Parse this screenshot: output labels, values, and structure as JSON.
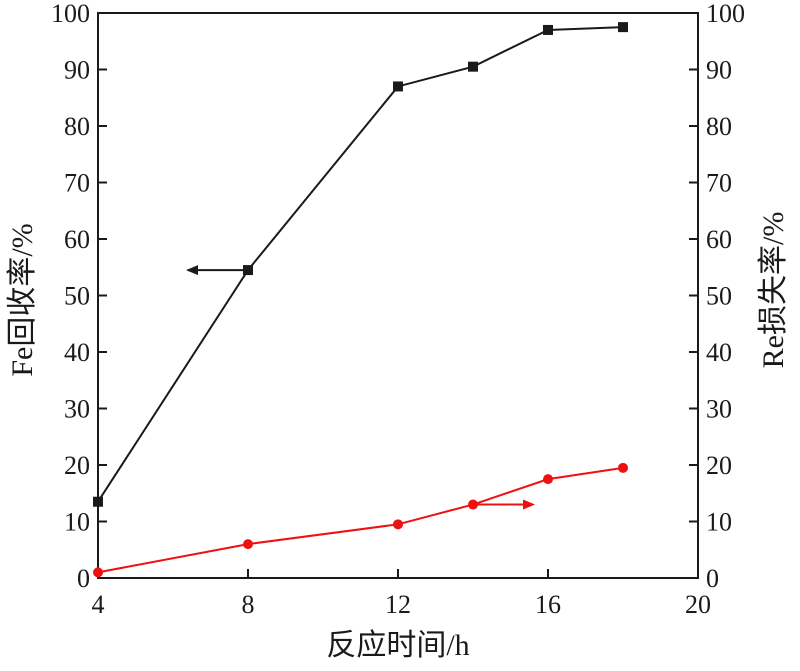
{
  "chart_data": {
    "type": "line",
    "xlabel": "反应时间/h",
    "ylabel_left": "Fe回收率/%",
    "ylabel_right": "Re损失率/%",
    "xlim": [
      4,
      20
    ],
    "xticks": [
      4,
      8,
      12,
      16,
      20
    ],
    "ylim_left": [
      0,
      100
    ],
    "ylim_right": [
      0,
      100
    ],
    "yticks": [
      0,
      10,
      20,
      30,
      40,
      50,
      60,
      70,
      80,
      90,
      100
    ],
    "grid": false,
    "series": [
      {
        "axis": "left",
        "marker": "square",
        "color": "#1a1a1a",
        "x": [
          4,
          8,
          12,
          14,
          16,
          18
        ],
        "y": [
          13.5,
          54.5,
          87,
          90.5,
          97,
          97.5
        ]
      },
      {
        "axis": "right",
        "marker": "circle",
        "color": "#ee1111",
        "x": [
          4,
          8,
          12,
          14,
          16,
          18
        ],
        "y": [
          1,
          6,
          9.5,
          13,
          17.5,
          19.5
        ]
      }
    ],
    "annotations": [
      {
        "series": 0,
        "direction": "left",
        "x": 8,
        "y": 54.5
      },
      {
        "series": 1,
        "direction": "right",
        "x": 14,
        "y": 13
      }
    ]
  }
}
